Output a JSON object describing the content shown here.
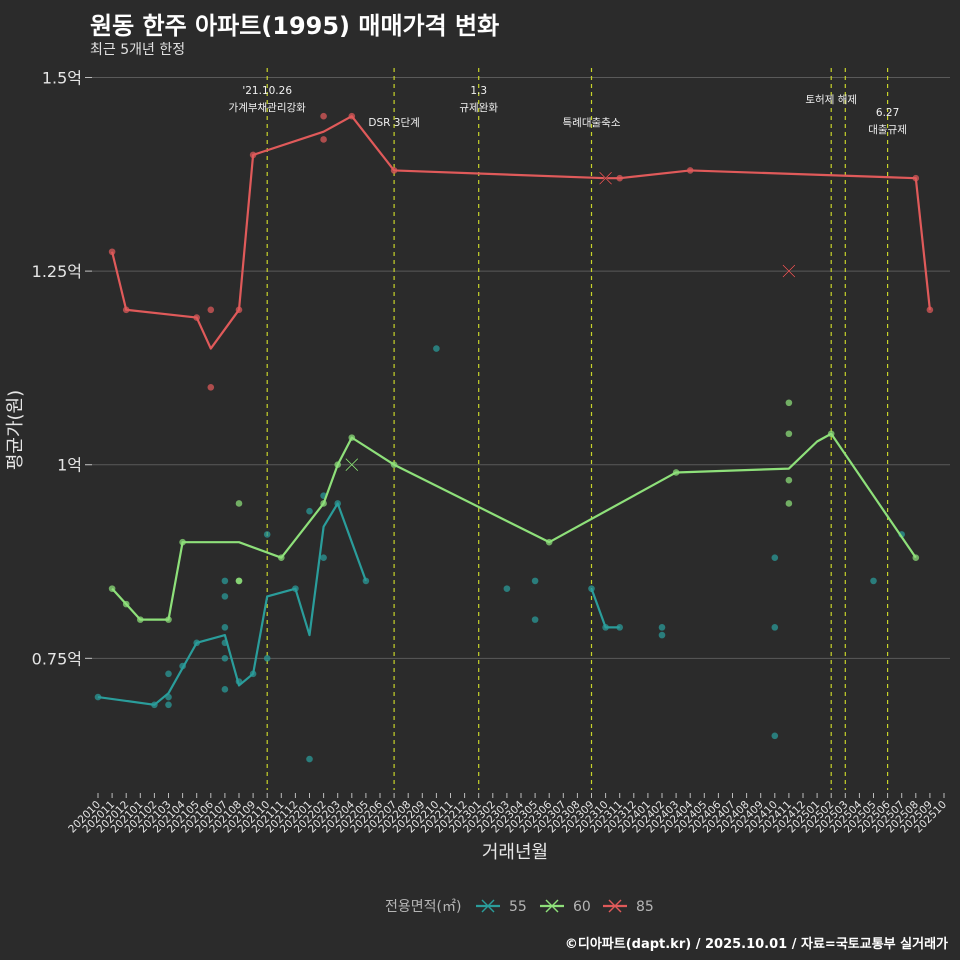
{
  "header": {
    "title": "원동 한주 아파트(1995) 매매가격 변화",
    "subtitle": "최근 5개년 한정"
  },
  "caption": "©디아파트(dapt.kr) / 2025.10.01 / 자료=국토교통부 실거래가",
  "colors": {
    "s55": "#2a9d9b",
    "s60": "#8ee07a",
    "s85": "#e05a5a",
    "vline": "#c8d42a",
    "grid": "#5a5a5a"
  },
  "chart_data": {
    "type": "line",
    "xlabel": "거래년월",
    "ylabel": "평균가(원)",
    "ylim": [
      0.58,
      1.52
    ],
    "yticks": [
      {
        "v": 0.75,
        "label": "0.75억"
      },
      {
        "v": 1.0,
        "label": "1억"
      },
      {
        "v": 1.25,
        "label": "1.25억"
      },
      {
        "v": 1.5,
        "label": "1.5억"
      }
    ],
    "x_months": [
      "202010",
      "202011",
      "202012",
      "202101",
      "202102",
      "202103",
      "202104",
      "202105",
      "202106",
      "202107",
      "202108",
      "202109",
      "202110",
      "202111",
      "202112",
      "202201",
      "202202",
      "202203",
      "202204",
      "202205",
      "202206",
      "202207",
      "202208",
      "202209",
      "202210",
      "202211",
      "202212",
      "202301",
      "202302",
      "202303",
      "202304",
      "202305",
      "202306",
      "202307",
      "202308",
      "202309",
      "202310",
      "202311",
      "202312",
      "202401",
      "202402",
      "202403",
      "202404",
      "202405",
      "202406",
      "202407",
      "202408",
      "202409",
      "202410",
      "202411",
      "202412",
      "202501",
      "202502",
      "202503",
      "202504",
      "202505",
      "202506",
      "202507",
      "202508",
      "202509",
      "202510"
    ],
    "legend_title": "전용면적(㎡)",
    "series": [
      {
        "name": "55",
        "color": "#2a9d9b",
        "line": [
          [
            0,
            0.7
          ],
          [
            4,
            0.69
          ],
          [
            5,
            0.705
          ],
          [
            7,
            0.77
          ],
          [
            9,
            0.78
          ],
          [
            10,
            0.715
          ],
          [
            11,
            0.73
          ],
          [
            12,
            0.83
          ],
          [
            14,
            0.84
          ],
          [
            15,
            0.78
          ],
          [
            16,
            0.92
          ],
          [
            17,
            0.95
          ],
          [
            19,
            0.85
          ],
          null,
          [
            35,
            0.84
          ],
          [
            36,
            0.79
          ],
          [
            37,
            0.79
          ]
        ],
        "points": [
          [
            0,
            0.7
          ],
          [
            4,
            0.69
          ],
          [
            5,
            0.7
          ],
          [
            5,
            0.69
          ],
          [
            5,
            0.73
          ],
          [
            6,
            0.74
          ],
          [
            7,
            0.77
          ],
          [
            9,
            0.85
          ],
          [
            9,
            0.83
          ],
          [
            9,
            0.79
          ],
          [
            9,
            0.77
          ],
          [
            9,
            0.75
          ],
          [
            9,
            0.71
          ],
          [
            10,
            0.72
          ],
          [
            11,
            0.73
          ],
          [
            12,
            0.91
          ],
          [
            12,
            0.75
          ],
          [
            14,
            0.84
          ],
          [
            15,
            0.94
          ],
          [
            15,
            0.62
          ],
          [
            16,
            0.96
          ],
          [
            16,
            0.88
          ],
          [
            17,
            0.95
          ],
          [
            19,
            0.85
          ],
          [
            24,
            1.15
          ],
          [
            29,
            0.84
          ],
          [
            31,
            0.85
          ],
          [
            31,
            0.8
          ],
          [
            35,
            0.84
          ],
          [
            36,
            0.79
          ],
          [
            37,
            0.79
          ],
          [
            40,
            0.79
          ],
          [
            40,
            0.78
          ],
          [
            48,
            0.88
          ],
          [
            48,
            0.79
          ],
          [
            48,
            0.65
          ],
          [
            55,
            0.85
          ],
          [
            57,
            0.91
          ]
        ]
      },
      {
        "name": "60",
        "color": "#8ee07a",
        "line": [
          [
            1,
            0.84
          ],
          [
            2,
            0.82
          ],
          [
            3,
            0.8
          ],
          [
            5,
            0.8
          ],
          [
            6,
            0.9
          ],
          [
            10,
            0.9
          ],
          [
            13,
            0.88
          ],
          [
            16,
            0.95
          ],
          [
            17,
            1.0
          ],
          [
            18,
            1.035
          ],
          [
            21,
            1.0
          ],
          [
            32,
            0.9
          ],
          [
            41,
            0.99
          ],
          [
            49,
            0.995
          ],
          [
            51,
            1.03
          ],
          [
            52,
            1.04
          ],
          [
            58,
            0.88
          ]
        ],
        "points": [
          [
            1,
            0.84
          ],
          [
            2,
            0.82
          ],
          [
            3,
            0.8
          ],
          [
            5,
            0.8
          ],
          [
            6,
            0.9
          ],
          [
            10,
            0.95
          ],
          [
            10,
            0.85
          ],
          [
            10,
            0.85
          ],
          [
            13,
            0.88
          ],
          [
            16,
            0.95
          ],
          [
            17,
            1.0
          ],
          [
            18,
            1.035
          ],
          [
            21,
            1.0
          ],
          [
            32,
            0.9
          ],
          [
            41,
            0.99
          ],
          [
            49,
            1.08
          ],
          [
            49,
            1.04
          ],
          [
            49,
            0.98
          ],
          [
            49,
            0.95
          ],
          [
            52,
            1.04
          ],
          [
            58,
            0.88
          ]
        ],
        "crosses": [
          [
            18,
            1.0
          ]
        ]
      },
      {
        "name": "85",
        "color": "#e05a5a",
        "line": [
          [
            1,
            1.275
          ],
          [
            2,
            1.2
          ],
          [
            7,
            1.19
          ],
          [
            8,
            1.15
          ],
          [
            10,
            1.2
          ],
          [
            11,
            1.4
          ],
          [
            16,
            1.43
          ],
          [
            18,
            1.45
          ],
          [
            21,
            1.38
          ],
          [
            36,
            1.37
          ],
          [
            37,
            1.37
          ],
          [
            42,
            1.38
          ],
          [
            58,
            1.37
          ],
          [
            59,
            1.2
          ]
        ],
        "points": [
          [
            1,
            1.275
          ],
          [
            2,
            1.2
          ],
          [
            7,
            1.19
          ],
          [
            8,
            1.2
          ],
          [
            8,
            1.1
          ],
          [
            10,
            1.2
          ],
          [
            11,
            1.4
          ],
          [
            16,
            1.45
          ],
          [
            16,
            1.42
          ],
          [
            18,
            1.45
          ],
          [
            21,
            1.38
          ],
          [
            37,
            1.37
          ],
          [
            42,
            1.38
          ],
          [
            58,
            1.37
          ],
          [
            59,
            1.2
          ]
        ],
        "crosses": [
          [
            36,
            1.37
          ],
          [
            49,
            1.25
          ]
        ]
      }
    ],
    "events": [
      {
        "x": 12,
        "lines": [
          "'21.10.26",
          "가계부채관리강화"
        ],
        "row": 0
      },
      {
        "x": 21,
        "lines": [
          "DSR 3단계"
        ],
        "row": 2
      },
      {
        "x": 27,
        "lines": [
          "1.3",
          "규제완화"
        ],
        "row": 0
      },
      {
        "x": 35,
        "lines": [
          "특례대출축소"
        ],
        "row": 2
      },
      {
        "x": 52,
        "lines": [
          "토허제 해제"
        ],
        "row": 1
      },
      {
        "x": 53,
        "lines": [],
        "row": 1
      },
      {
        "x": 56,
        "lines": [
          "6.27",
          "대출규제"
        ],
        "row": 3
      }
    ]
  }
}
